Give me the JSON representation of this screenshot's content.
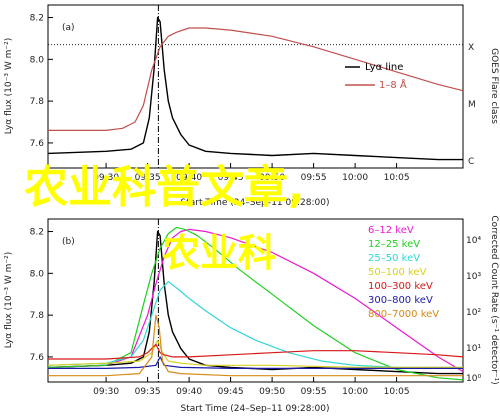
{
  "watermark": {
    "large": "农业科普文章,",
    "small": "农业科"
  },
  "chart_data": [
    {
      "panel_label": "(a)",
      "type": "line",
      "ylabel": "Lyα flux (10⁻³ W m⁻²)",
      "ylim": [
        7.48,
        8.26
      ],
      "yticks": [
        7.6,
        7.8,
        8.0,
        8.2
      ],
      "xlim_min": [
        -7,
        43
      ],
      "xticks_min": [
        0,
        5,
        10,
        15,
        20,
        25,
        30,
        35
      ],
      "xtick_labels": [
        "09:30",
        "09:35",
        "09:40",
        "09:45",
        "09:50",
        "09:55",
        "10:00",
        "10:05"
      ],
      "xlabel": "Start Time (24–Sep–11 09:28:00)",
      "right_axis": {
        "label": "GOES Flare class",
        "classes": [
          "X",
          "M",
          "C"
        ]
      },
      "legend": {
        "position": "upper-right"
      },
      "threshold_line": {
        "y": 8.07,
        "style": "dotted"
      },
      "peak_marker_min": 6.3,
      "series": [
        {
          "name": "Lyα line",
          "color": "#000000",
          "x": [
            -7,
            0,
            3,
            4.5,
            5.2,
            5.8,
            6.2,
            6.5,
            7,
            7.5,
            8,
            9,
            10,
            12,
            15,
            20,
            25,
            30,
            35,
            40,
            43
          ],
          "y": [
            7.55,
            7.56,
            7.57,
            7.6,
            7.72,
            7.96,
            8.2,
            8.18,
            7.95,
            7.8,
            7.72,
            7.64,
            7.59,
            7.56,
            7.55,
            7.54,
            7.55,
            7.54,
            7.53,
            7.52,
            7.52
          ]
        },
        {
          "name": "1–8 Å",
          "color": "#c0504d",
          "x": [
            -7,
            -2,
            0,
            2,
            3.5,
            4.5,
            5.5,
            6.5,
            7.5,
            8.5,
            10,
            12,
            15,
            20,
            25,
            30,
            35,
            40,
            43
          ],
          "y": [
            7.66,
            7.66,
            7.66,
            7.67,
            7.7,
            7.78,
            7.95,
            8.06,
            8.11,
            8.13,
            8.15,
            8.15,
            8.14,
            8.11,
            8.06,
            8.0,
            7.94,
            7.88,
            7.85
          ]
        }
      ]
    },
    {
      "panel_label": "(b)",
      "type": "line",
      "ylabel": "Lyα flux (10⁻³ W m⁻²)",
      "ylim": [
        7.48,
        8.26
      ],
      "yticks": [
        7.6,
        7.8,
        8.0,
        8.2
      ],
      "xlim_min": [
        -7,
        43
      ],
      "xticks_min": [
        0,
        5,
        10,
        15,
        20,
        25,
        30,
        35
      ],
      "xtick_labels": [
        "09:30",
        "09:35",
        "09:40",
        "09:45",
        "09:50",
        "09:55",
        "10:00",
        "10:05"
      ],
      "xlabel": "Start Time (24–Sep–11 09:28:00)",
      "right_axis": {
        "label": "Corrected Count Rate (s⁻¹ detector⁻¹)",
        "scale": "log",
        "ticks": [
          "10⁴",
          "10³",
          "10²",
          "10¹",
          "10⁰"
        ]
      },
      "legend": {
        "position": "upper-right"
      },
      "peak_marker_min": 6.3,
      "series": [
        {
          "name": "Lyα line",
          "color": "#000000",
          "x": [
            -7,
            0,
            3,
            4.5,
            5.2,
            5.8,
            6.2,
            6.5,
            7,
            7.5,
            8,
            9,
            10,
            12,
            15,
            20,
            25,
            30,
            35,
            40,
            43
          ],
          "y": [
            7.55,
            7.56,
            7.57,
            7.6,
            7.72,
            7.96,
            8.2,
            8.18,
            7.95,
            7.8,
            7.72,
            7.64,
            7.59,
            7.56,
            7.55,
            7.54,
            7.55,
            7.54,
            7.53,
            7.52,
            7.52
          ]
        },
        {
          "name": "6–12 keV",
          "color": "#e81ad0",
          "x": [
            -7,
            0,
            3,
            5,
            6,
            7,
            8,
            9,
            10,
            12,
            15,
            20,
            25,
            30,
            35,
            40,
            43
          ],
          "y": [
            7.55,
            7.56,
            7.6,
            7.8,
            7.95,
            8.08,
            8.17,
            8.2,
            8.21,
            8.2,
            8.17,
            8.1,
            8.0,
            7.88,
            7.74,
            7.6,
            7.53
          ]
        },
        {
          "name": "12–25 keV",
          "color": "#22d022",
          "x": [
            -7,
            0,
            3,
            4.5,
            5.5,
            6.5,
            7.5,
            8.5,
            9.5,
            11,
            13,
            16,
            20,
            25,
            30,
            35,
            40,
            43
          ],
          "y": [
            7.55,
            7.56,
            7.62,
            7.85,
            8.0,
            8.12,
            8.19,
            8.22,
            8.21,
            8.18,
            8.12,
            8.02,
            7.9,
            7.75,
            7.62,
            7.54,
            7.5,
            7.49
          ]
        },
        {
          "name": "25–50 keV",
          "color": "#33d6d6",
          "x": [
            -7,
            0,
            3,
            4.5,
            5.5,
            6.5,
            7.5,
            8.5,
            10,
            12,
            15,
            18,
            22,
            26,
            30,
            35,
            40,
            43
          ],
          "y": [
            7.56,
            7.57,
            7.6,
            7.68,
            7.8,
            7.92,
            7.96,
            7.93,
            7.88,
            7.82,
            7.74,
            7.68,
            7.62,
            7.58,
            7.56,
            7.55,
            7.55,
            7.55
          ]
        },
        {
          "name": "50–100 keV",
          "color": "#d8d020",
          "x": [
            -7,
            0,
            4,
            5.5,
            6.2,
            6.8,
            7.5,
            9,
            12,
            20,
            30,
            43
          ],
          "y": [
            7.56,
            7.57,
            7.58,
            7.62,
            7.68,
            7.62,
            7.58,
            7.57,
            7.56,
            7.56,
            7.55,
            7.55
          ]
        },
        {
          "name": "100–300 keV",
          "color": "#d81818",
          "x": [
            -7,
            0,
            4,
            5,
            6,
            6.5,
            7,
            8,
            10,
            15,
            20,
            25,
            30,
            35,
            40,
            43
          ],
          "y": [
            7.59,
            7.59,
            7.6,
            7.62,
            7.66,
            7.62,
            7.61,
            7.6,
            7.6,
            7.61,
            7.62,
            7.63,
            7.63,
            7.62,
            7.61,
            7.6
          ]
        },
        {
          "name": "300–800 keV",
          "color": "#1a1aa8",
          "x": [
            -7,
            0,
            4,
            6,
            6.5,
            7,
            9,
            15,
            25,
            35,
            43
          ],
          "y": [
            7.545,
            7.545,
            7.55,
            7.56,
            7.6,
            7.56,
            7.55,
            7.545,
            7.545,
            7.545,
            7.545
          ]
        },
        {
          "name": "800–7000 keV",
          "color": "#d88a18",
          "x": [
            -7,
            0,
            4,
            5.5,
            6,
            6.4,
            6.8,
            7.5,
            9,
            15,
            25,
            35,
            43
          ],
          "y": [
            7.51,
            7.51,
            7.52,
            7.6,
            7.8,
            7.74,
            7.58,
            7.53,
            7.52,
            7.51,
            7.51,
            7.51,
            7.51
          ]
        }
      ]
    }
  ]
}
